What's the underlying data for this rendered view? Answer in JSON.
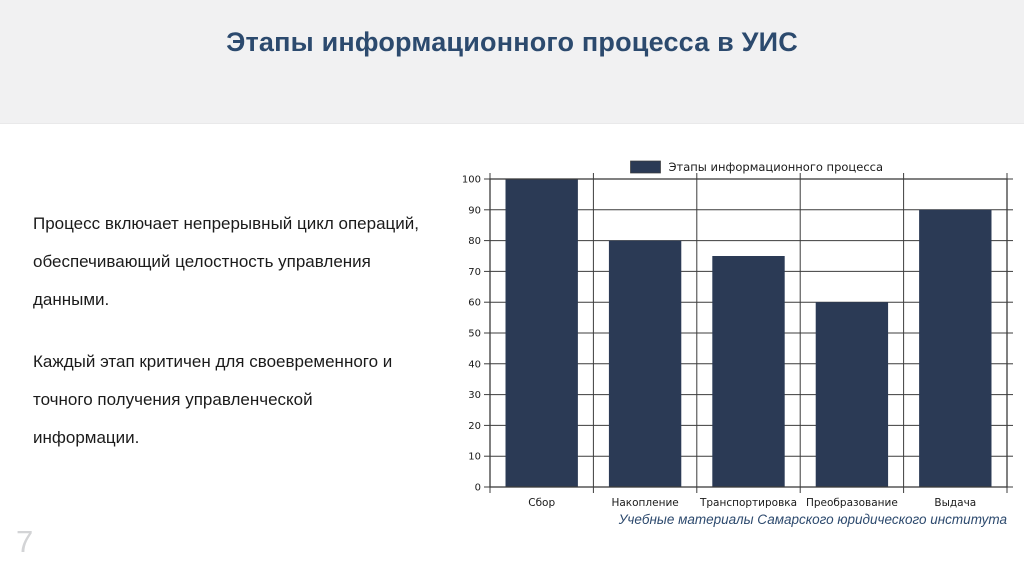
{
  "slide": {
    "title": "Этапы информационного процесса в УИС",
    "body_paragraphs": [
      "Процесс включает непрерывный цикл операций,\nобеспечивающий целостность управления\nданными.",
      "Каждый этап критичен для своевременного и\nточного получения управленческой\nинформации."
    ],
    "caption": "Учебные материалы Самарского юридического института",
    "page_number": "7"
  },
  "colors": {
    "accent_title": "#2c4a6e",
    "bar": "#2b3a55",
    "band_background": "#f1f1f2",
    "grid": "#3c3c3c",
    "chart_text": "#1a1a1a",
    "page_number": "#d3d4d6"
  },
  "chart_data": {
    "type": "bar",
    "title": "",
    "legend": [
      "Этапы информационного процесса"
    ],
    "legend_position": "top-center",
    "categories": [
      "Сбор",
      "Накопление",
      "Транспортировка",
      "Преобразование",
      "Выдача"
    ],
    "values": [
      100,
      80,
      75,
      60,
      90
    ],
    "xlabel": "",
    "ylabel": "",
    "ylim": [
      0,
      100
    ],
    "ytick_step": 10,
    "grid": true
  }
}
